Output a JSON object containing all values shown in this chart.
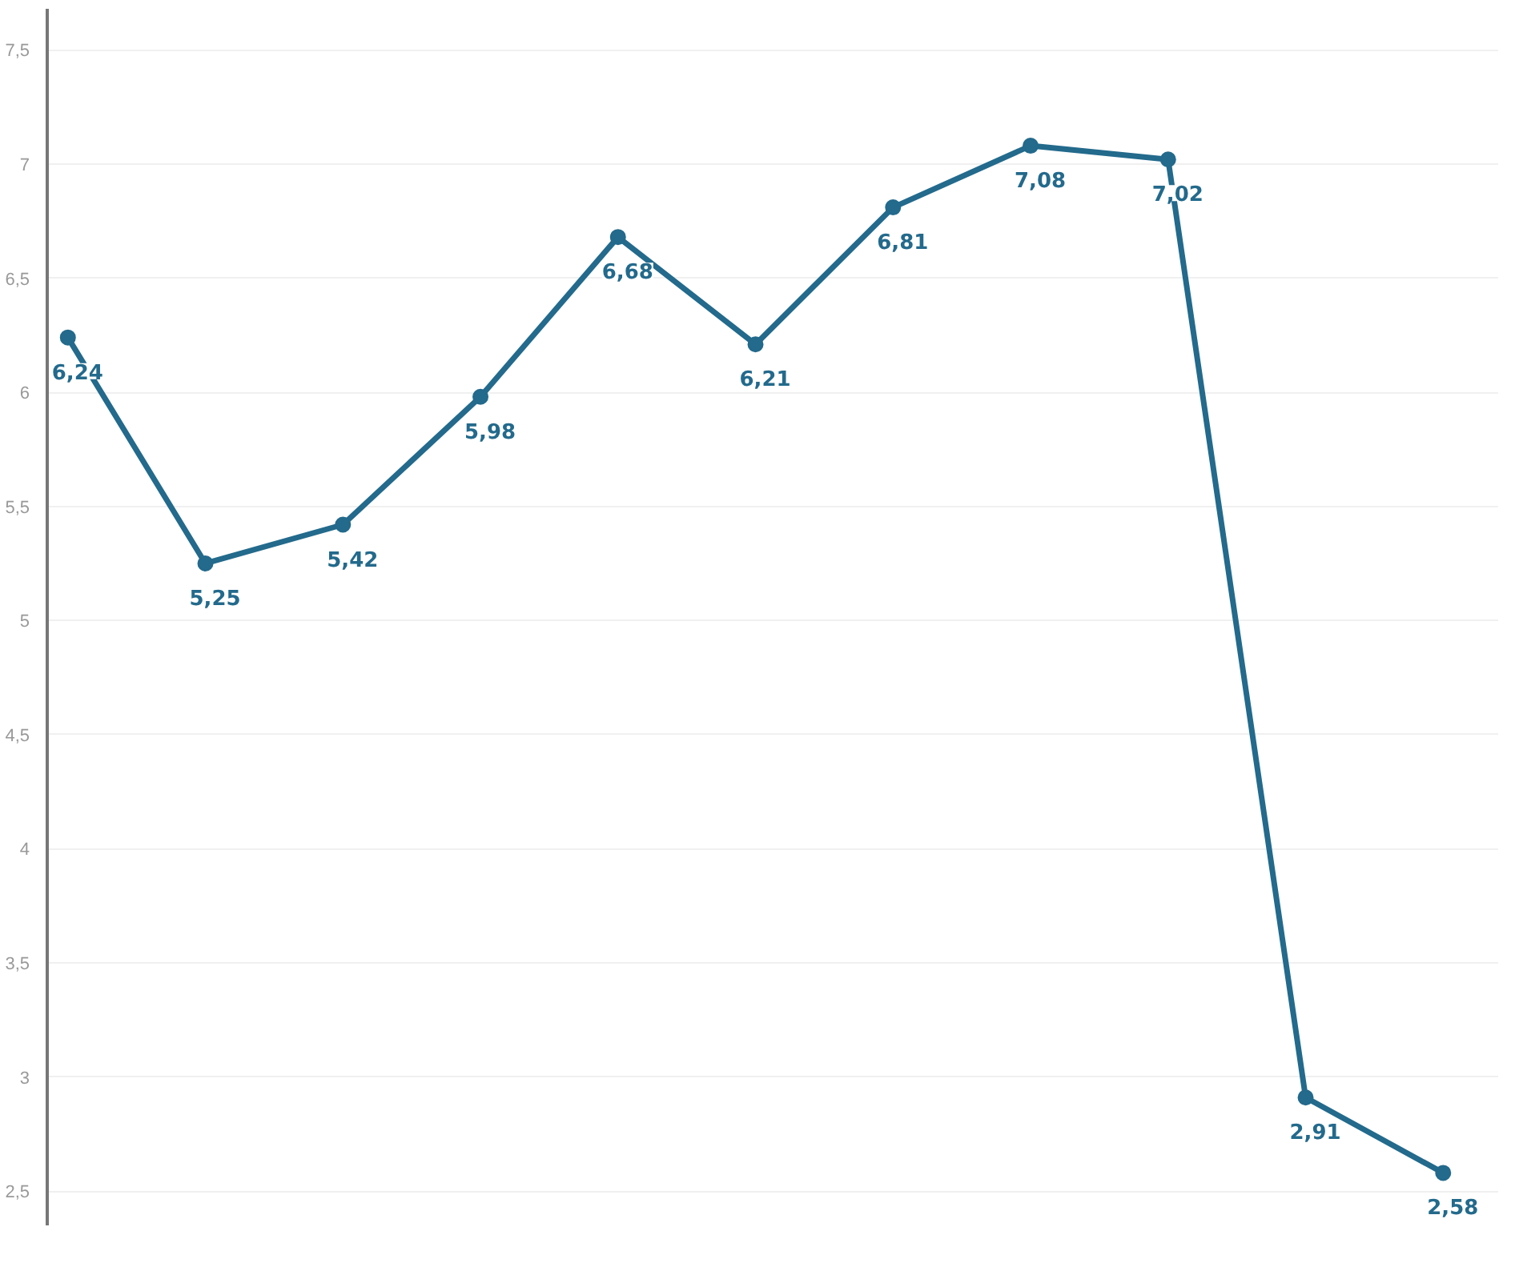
{
  "chart_data": {
    "type": "line",
    "categories": [
      null,
      null,
      null,
      null,
      null,
      null,
      null,
      null,
      null,
      null,
      null
    ],
    "series": [
      {
        "color": "#236a8c",
        "values": [
          6.24,
          5.25,
          5.42,
          5.98,
          6.68,
          6.21,
          6.81,
          7.08,
          7.02,
          2.91,
          2.58
        ],
        "value_labels": [
          "6,24",
          "5,25",
          "5,42",
          "5,98",
          "6,68",
          "6,21",
          "6,81",
          "7,08",
          "7,02",
          "2,91",
          "2,58"
        ]
      }
    ],
    "ylim": [
      2.35,
      7.68
    ],
    "yticks": [
      {
        "value": 2.5,
        "label": "2,5"
      },
      {
        "value": 3,
        "label": "3"
      },
      {
        "value": 3.5,
        "label": "3,5"
      },
      {
        "value": 4,
        "label": "4"
      },
      {
        "value": 4.5,
        "label": "4,5"
      },
      {
        "value": 5,
        "label": "5"
      },
      {
        "value": 5.5,
        "label": "5,5"
      },
      {
        "value": 6,
        "label": "6"
      },
      {
        "value": 6.5,
        "label": "6,5"
      },
      {
        "value": 7,
        "label": "7"
      },
      {
        "value": 7.5,
        "label": "7,5"
      }
    ],
    "grid": "y",
    "marker": "circle",
    "line_style": "solid",
    "tick_labels": "y"
  }
}
